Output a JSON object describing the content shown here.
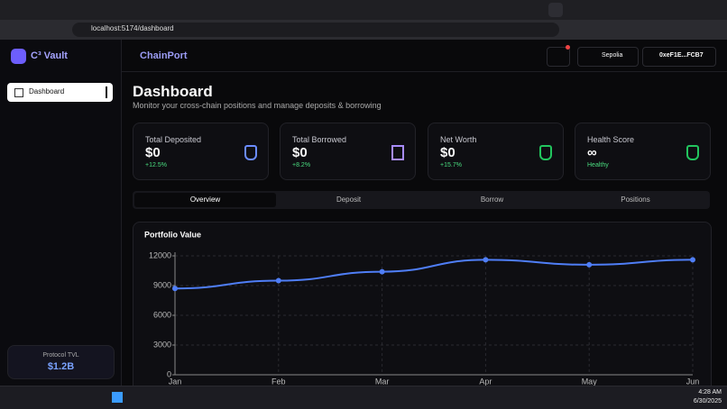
{
  "browser": {
    "url": "localhost:5174/dashboard"
  },
  "app": {
    "logo": "C³ Vault",
    "brand": "ChainPort",
    "network": "Sepolia",
    "wallet": "0xeF1E...FCB7"
  },
  "sidebar": {
    "items": [
      "Dashboard"
    ],
    "tvl_label": "Protocol TVL",
    "tvl_value": "$1.2B"
  },
  "page": {
    "title": "Dashboard",
    "subtitle": "Monitor your cross-chain positions and manage deposits & borrowing"
  },
  "stats": [
    {
      "label": "Total Deposited",
      "value": "$0",
      "change": "+12.5%"
    },
    {
      "label": "Total Borrowed",
      "value": "$0",
      "change": "+8.2%"
    },
    {
      "label": "Net Worth",
      "value": "$0",
      "change": "+15.7%"
    },
    {
      "label": "Health Score",
      "value": "∞",
      "change": "Healthy"
    }
  ],
  "tabs": [
    "Overview",
    "Deposit",
    "Borrow",
    "Positions"
  ],
  "chart_data": {
    "type": "line",
    "title": "Portfolio Value",
    "categories": [
      "Jan",
      "Feb",
      "Mar",
      "Apr",
      "May",
      "Jun"
    ],
    "values": [
      8700,
      9500,
      10400,
      11600,
      11100,
      11600
    ],
    "color": "#4f7ef7",
    "ylim": [
      0,
      12000
    ],
    "yticks": [
      0,
      3000,
      6000,
      9000,
      12000
    ],
    "grid": true
  },
  "taskbar": {
    "time": "4:28 AM",
    "date": "6/30/2025"
  }
}
